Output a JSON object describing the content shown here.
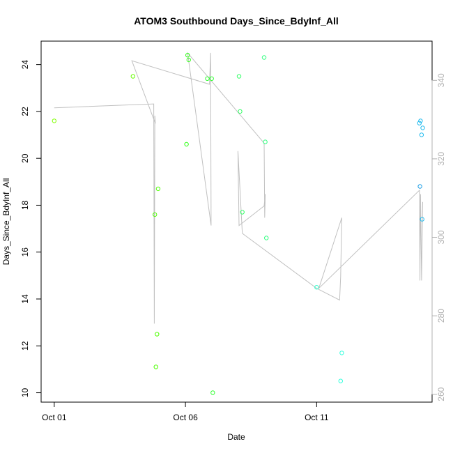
{
  "chart_data": {
    "type": "scatter",
    "title": "ATOM3 Southbound Days_Since_BdyInf_All",
    "xlabel": "Date",
    "ylabel": "Days_Since_BdyInf_All",
    "x_ticks": [
      "Oct 01",
      "Oct 06",
      "Oct 11"
    ],
    "x_tick_days": [
      1,
      6,
      11
    ],
    "x_range_days": [
      0.5,
      15.4
    ],
    "y_range": [
      9.6,
      25.0
    ],
    "y_ticks": [
      10,
      12,
      14,
      16,
      18,
      20,
      22,
      24
    ],
    "y2_range": [
      258,
      350
    ],
    "y2_ticks": [
      260,
      280,
      300,
      320,
      340
    ],
    "y2_color": "#b0b0b0",
    "line_color": "#c0c0c0",
    "grid": false,
    "points": [
      {
        "x": "2024-10-01 00:00",
        "y": 21.6,
        "color": "#80ff00"
      },
      {
        "x": "2024-10-04 00:00",
        "y": 23.5,
        "color": "#66ff00"
      },
      {
        "x": "2024-10-04 20:00",
        "y": 17.6,
        "color": "#4dff00"
      },
      {
        "x": "2024-10-04 21:00",
        "y": 11.1,
        "color": "#4dff00"
      },
      {
        "x": "2024-10-04 22:00",
        "y": 12.5,
        "color": "#4dff00"
      },
      {
        "x": "2024-10-04 23:00",
        "y": 18.7,
        "color": "#4dff00"
      },
      {
        "x": "2024-10-06 01:00",
        "y": 20.6,
        "color": "#33ff1a"
      },
      {
        "x": "2024-10-06 02:00",
        "y": 24.4,
        "color": "#33ff1a"
      },
      {
        "x": "2024-10-06 03:00",
        "y": 24.2,
        "color": "#33ff1a"
      },
      {
        "x": "2024-10-06 20:00",
        "y": 23.4,
        "color": "#33ff33"
      },
      {
        "x": "2024-10-07 00:00",
        "y": 23.4,
        "color": "#33ff33"
      },
      {
        "x": "2024-10-07 01:00",
        "y": 10.0,
        "color": "#33ff33"
      },
      {
        "x": "2024-10-08 01:00",
        "y": 23.5,
        "color": "#33ff66"
      },
      {
        "x": "2024-10-08 02:00",
        "y": 22.0,
        "color": "#33ff66"
      },
      {
        "x": "2024-10-08 04:00",
        "y": 17.7,
        "color": "#33ff66"
      },
      {
        "x": "2024-10-09 00:00",
        "y": 24.3,
        "color": "#33ff80"
      },
      {
        "x": "2024-10-09 01:00",
        "y": 20.7,
        "color": "#33ff80"
      },
      {
        "x": "2024-10-09 02:00",
        "y": 16.6,
        "color": "#33ff80"
      },
      {
        "x": "2024-10-11 00:00",
        "y": 14.5,
        "color": "#33ffcc"
      },
      {
        "x": "2024-10-11 22:00",
        "y": 10.5,
        "color": "#33ffdd"
      },
      {
        "x": "2024-10-11 23:00",
        "y": 11.7,
        "color": "#33ffdd"
      },
      {
        "x": "2024-10-14 22:00",
        "y": 21.5,
        "color": "#22bbee"
      },
      {
        "x": "2024-10-14 22:30",
        "y": 18.8,
        "color": "#1e9fe6"
      },
      {
        "x": "2024-10-14 23:00",
        "y": 21.6,
        "color": "#22bbee"
      },
      {
        "x": "2024-10-15 00:00",
        "y": 21.0,
        "color": "#22bbee"
      },
      {
        "x": "2024-10-15 00:30",
        "y": 17.4,
        "color": "#22bbee"
      },
      {
        "x": "2024-10-15 01:00",
        "y": 21.3,
        "color": "#22bbee"
      }
    ],
    "line": [
      {
        "x": "2024-10-01 00:00",
        "y2": 333
      },
      {
        "x": "2024-10-04 19:00",
        "y2": 334
      },
      {
        "x": "2024-10-04 19:30",
        "y2": 278
      },
      {
        "x": "2024-10-04 20:00",
        "y2": 331
      },
      {
        "x": "2024-10-04 20:30",
        "y2": 329
      },
      {
        "x": "2024-10-03 23:00",
        "y2": 345
      },
      {
        "x": "2024-10-06 22:00",
        "y2": 339
      },
      {
        "x": "2024-10-06 23:00",
        "y2": 347
      },
      {
        "x": "2024-10-06 23:30",
        "y2": 303
      },
      {
        "x": "2024-10-06 02:00",
        "y2": 347
      },
      {
        "x": "2024-10-09 00:00",
        "y2": 324
      },
      {
        "x": "2024-10-09 00:30",
        "y2": 305
      },
      {
        "x": "2024-10-09 01:00",
        "y2": 311
      },
      {
        "x": "2024-10-09 00:00",
        "y2": 308
      },
      {
        "x": "2024-10-08 01:00",
        "y2": 303
      },
      {
        "x": "2024-10-08 00:00",
        "y2": 322
      },
      {
        "x": "2024-10-08 04:00",
        "y2": 301
      },
      {
        "x": "2024-10-11 00:00",
        "y2": 287
      },
      {
        "x": "2024-10-11 21:00",
        "y2": 284
      },
      {
        "x": "2024-10-11 22:00",
        "y2": 290
      },
      {
        "x": "2024-10-11 23:00",
        "y2": 305
      },
      {
        "x": "2024-10-11 02:00",
        "y2": 287
      },
      {
        "x": "2024-10-14 22:00",
        "y2": 312
      },
      {
        "x": "2024-10-14 22:30",
        "y2": 289
      },
      {
        "x": "2024-10-14 23:00",
        "y2": 311
      },
      {
        "x": "2024-10-15 00:00",
        "y2": 289
      },
      {
        "x": "2024-10-15 01:00",
        "y2": 309
      }
    ]
  }
}
